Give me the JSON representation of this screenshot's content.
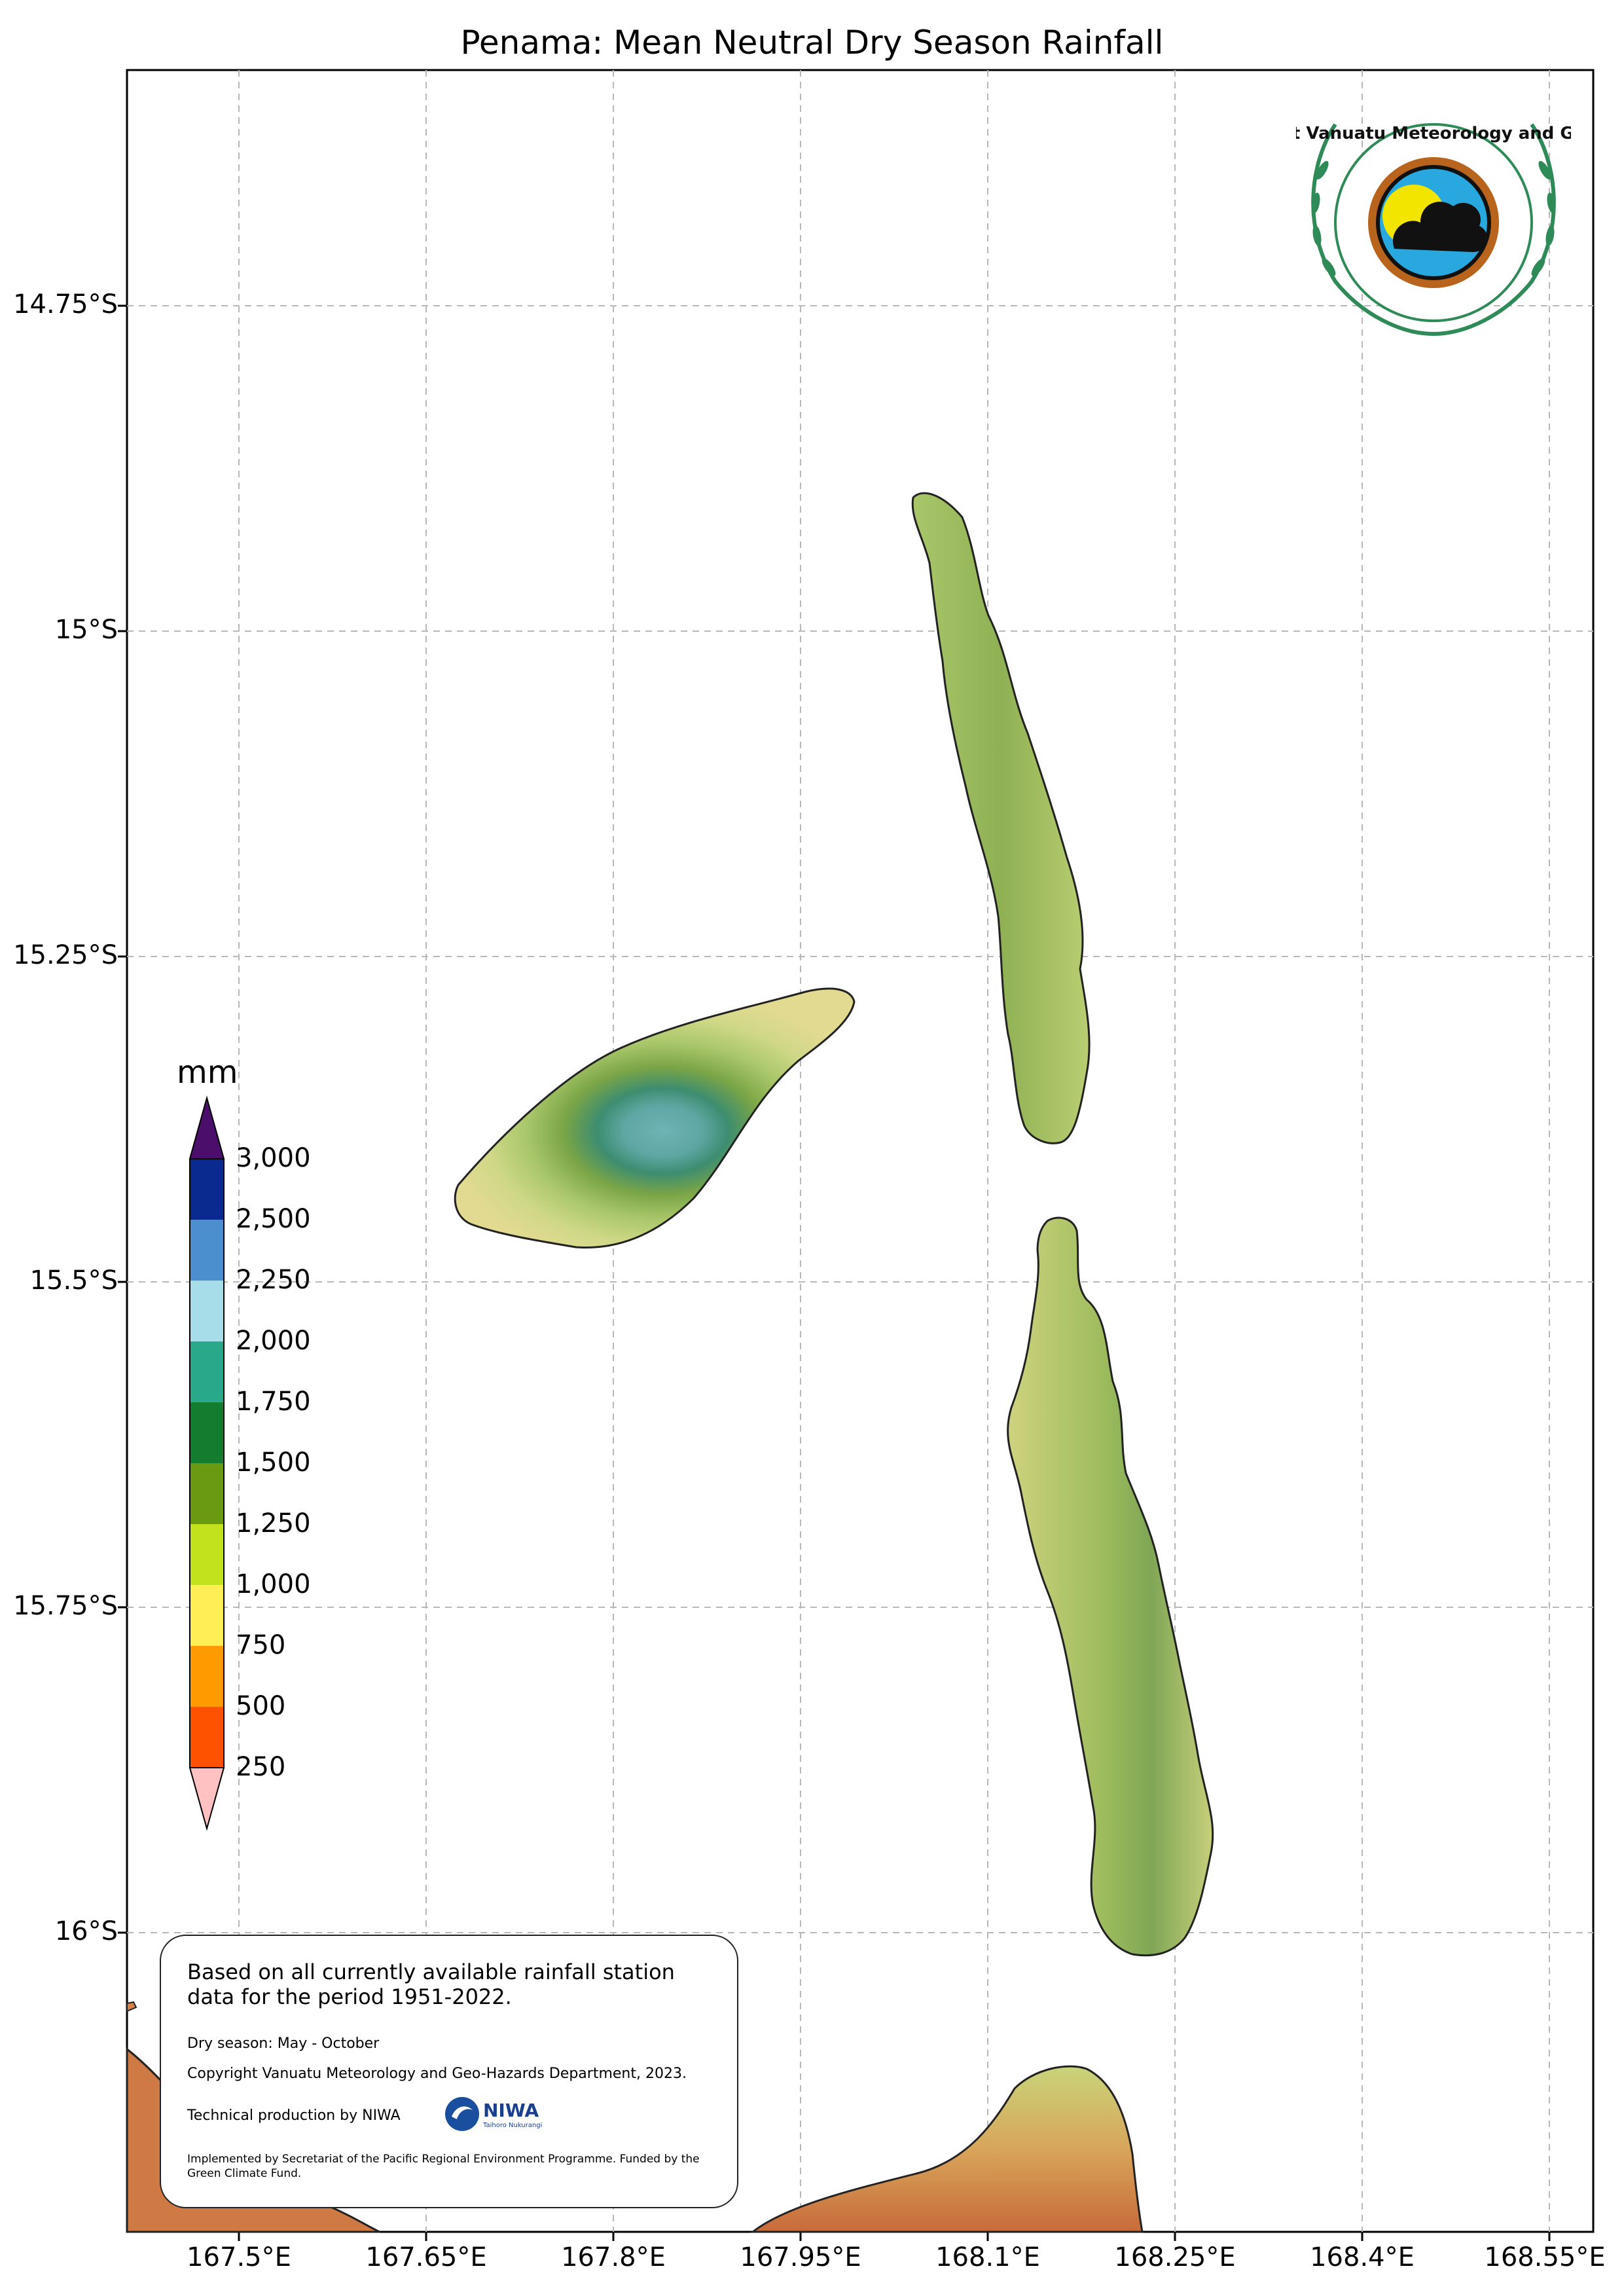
{
  "title": "Penama: Mean Neutral Dry Season Rainfall",
  "lat_ticks": [
    "14.75°S",
    "15°S",
    "15.25°S",
    "15.5°S",
    "15.75°S",
    "16°S"
  ],
  "lon_ticks": [
    "167.5°E",
    "167.65°E",
    "167.8°E",
    "167.95°E",
    "168.1°E",
    "168.25°E",
    "168.4°E",
    "168.55°E"
  ],
  "colorbar": {
    "unit": "mm",
    "ticks": [
      "3,000",
      "2,500",
      "2,250",
      "2,000",
      "1,750",
      "1,500",
      "1,250",
      "1,000",
      "750",
      "500",
      "250"
    ],
    "colors": [
      "#0b2a8f",
      "#4b8fcf",
      "#a6dde8",
      "#2aa88a",
      "#137c2e",
      "#6a9a12",
      "#c3e21e",
      "#ffee55",
      "#ff9a00",
      "#ff5200"
    ],
    "over_color": "#4b0f6b",
    "under_color": "#ffc1c1"
  },
  "info": {
    "main": "Based on all currently available rainfall station data for the period 1951-2022.",
    "season": "Dry season: May - October",
    "copyright": "Copyright Vanuatu Meteorology and Geo-Hazards Department, 2023.",
    "technical": "Technical production by NIWA",
    "implemented": "Implemented by Secretariat of the Pacific Regional Environment Programme. Funded by the Green Climate Fund."
  },
  "logos": {
    "vmgd_text": "Department Vanuatu Meteorology and Geo-Hazards",
    "niwa_text": "NIWA",
    "niwa_subtext": "Taihoro Nukurangi"
  }
}
